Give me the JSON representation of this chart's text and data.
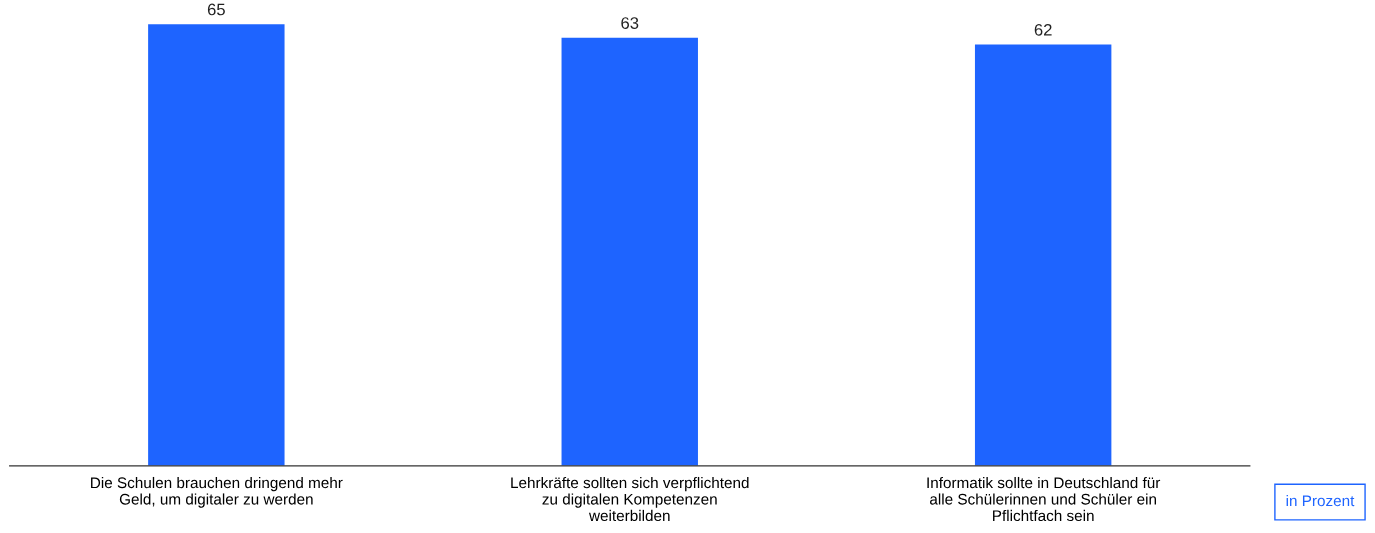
{
  "chart_data": {
    "type": "bar",
    "categories": [
      "Die Schulen brauchen dringend mehr\nGeld, um digitaler zu werden",
      "Lehrkräfte sollten sich verpflichtend\nzu digitalen Kompetenzen\nweiterbilden",
      "Informatik sollte in Deutschland für\nalle Schülerinnen und Schüler ein\nPflichtfach sein"
    ],
    "values": [
      65,
      63,
      62
    ],
    "color": "#1e64ff",
    "data_labels": true,
    "tick_labels": "x",
    "annotations": [
      "in Prozent"
    ]
  }
}
